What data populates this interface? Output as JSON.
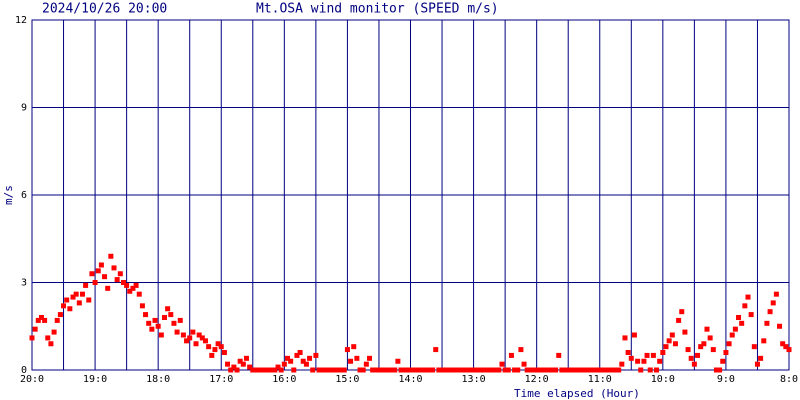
{
  "chart_data": {
    "type": "scatter",
    "title": "Mt.OSA wind monitor (SPEED m/s)",
    "subtitle": "2024/10/26 20:00",
    "x_label": "Time elapsed (Hour)",
    "y_label": "m/s",
    "color": "#ff0000",
    "grid": true,
    "grid_color": "#000080",
    "xlim": [
      0,
      12
    ],
    "ylim": [
      0,
      12
    ],
    "yticks": [
      0,
      3,
      6,
      9,
      12
    ],
    "xticks": [
      {
        "value": 0,
        "label": "20:0"
      },
      {
        "value": 1,
        "label": "19:0"
      },
      {
        "value": 2,
        "label": "18:0"
      },
      {
        "value": 3,
        "label": "17:0"
      },
      {
        "value": 4,
        "label": "16:0"
      },
      {
        "value": 5,
        "label": "15:0"
      },
      {
        "value": 6,
        "label": "14:0"
      },
      {
        "value": 7,
        "label": "13:0"
      },
      {
        "value": 8,
        "label": "12:0"
      },
      {
        "value": 9,
        "label": "11:0"
      },
      {
        "value": 10,
        "label": "10:0"
      },
      {
        "value": 11,
        "label": "9:0"
      },
      {
        "value": 12,
        "label": "8:0"
      }
    ],
    "x": [
      0,
      0.05,
      0.1,
      0.15,
      0.2,
      0.25,
      0.3,
      0.35,
      0.4,
      0.45,
      0.5,
      0.55,
      0.6,
      0.65,
      0.7,
      0.75,
      0.8,
      0.85,
      0.9,
      0.95,
      1,
      1.05,
      1.1,
      1.15,
      1.2,
      1.25,
      1.3,
      1.35,
      1.4,
      1.45,
      1.5,
      1.55,
      1.6,
      1.65,
      1.7,
      1.75,
      1.8,
      1.85,
      1.9,
      1.95,
      2,
      2.05,
      2.1,
      2.15,
      2.2,
      2.25,
      2.3,
      2.35,
      2.4,
      2.45,
      2.5,
      2.55,
      2.6,
      2.65,
      2.7,
      2.75,
      2.8,
      2.85,
      2.9,
      2.95,
      3,
      3.05,
      3.1,
      3.15,
      3.2,
      3.25,
      3.3,
      3.35,
      3.4,
      3.45,
      3.5,
      3.55,
      3.6,
      3.65,
      3.7,
      3.75,
      3.8,
      3.85,
      3.9,
      3.95,
      4,
      4.05,
      4.1,
      4.15,
      4.2,
      4.25,
      4.3,
      4.35,
      4.4,
      4.45,
      4.5,
      4.55,
      4.6,
      4.65,
      4.7,
      4.75,
      4.8,
      4.85,
      4.9,
      4.95,
      5,
      5.05,
      5.1,
      5.15,
      5.2,
      5.25,
      5.3,
      5.35,
      5.4,
      5.45,
      5.5,
      5.55,
      5.6,
      5.65,
      5.7,
      5.75,
      5.8,
      5.85,
      5.9,
      5.95,
      6,
      6.05,
      6.1,
      6.15,
      6.2,
      6.25,
      6.3,
      6.35,
      6.4,
      6.45,
      6.5,
      6.55,
      6.6,
      6.65,
      6.7,
      6.75,
      6.8,
      6.85,
      6.9,
      6.95,
      7,
      7.05,
      7.1,
      7.15,
      7.2,
      7.25,
      7.3,
      7.35,
      7.4,
      7.45,
      7.5,
      7.55,
      7.6,
      7.65,
      7.7,
      7.75,
      7.8,
      7.85,
      7.9,
      7.95,
      8,
      8.05,
      8.1,
      8.15,
      8.2,
      8.25,
      8.3,
      8.35,
      8.4,
      8.45,
      8.5,
      8.55,
      8.6,
      8.65,
      8.7,
      8.75,
      8.8,
      8.85,
      8.9,
      8.95,
      9,
      9.05,
      9.1,
      9.15,
      9.2,
      9.25,
      9.3,
      9.35,
      9.4,
      9.45,
      9.5,
      9.55,
      9.6,
      9.65,
      9.7,
      9.75,
      9.8,
      9.85,
      9.9,
      9.95,
      10,
      10.05,
      10.1,
      10.15,
      10.2,
      10.25,
      10.3,
      10.35,
      10.4,
      10.45,
      10.5,
      10.55,
      10.6,
      10.65,
      10.7,
      10.75,
      10.8,
      10.85,
      10.9,
      10.95,
      11,
      11.05,
      11.1,
      11.15,
      11.2,
      11.25,
      11.3,
      11.35,
      11.4,
      11.45,
      11.5,
      11.55,
      11.6,
      11.65,
      11.7,
      11.75,
      11.8,
      11.85,
      11.9,
      11.95,
      12
    ],
    "values": [
      1.1,
      1.4,
      1.7,
      1.8,
      1.7,
      1.1,
      0.9,
      1.3,
      1.7,
      1.9,
      2.2,
      2.4,
      2.1,
      2.5,
      2.6,
      2.3,
      2.6,
      2.9,
      2.4,
      3.3,
      3.0,
      3.4,
      3.6,
      3.2,
      2.8,
      3.9,
      3.5,
      3.1,
      3.3,
      3.0,
      2.9,
      2.7,
      2.8,
      2.9,
      2.6,
      2.2,
      1.9,
      1.6,
      1.4,
      1.7,
      1.5,
      1.2,
      1.8,
      2.1,
      1.9,
      1.6,
      1.3,
      1.7,
      1.2,
      1.0,
      1.1,
      1.3,
      0.9,
      1.2,
      1.1,
      1.0,
      0.8,
      0.5,
      0.7,
      0.9,
      0.8,
      0.6,
      0.2,
      0,
      0.1,
      0,
      0.3,
      0.2,
      0.4,
      0.1,
      0,
      0,
      0,
      0,
      0,
      0,
      0,
      0,
      0.1,
      0,
      0.2,
      0.4,
      0.3,
      0,
      0.5,
      0.6,
      0.3,
      0.2,
      0.4,
      0,
      0.5,
      0,
      0,
      0,
      0,
      0,
      0,
      0,
      0,
      0,
      0.7,
      0.3,
      0.8,
      0.4,
      0,
      0,
      0.2,
      0.4,
      0,
      0,
      0,
      0,
      0,
      0,
      0,
      0,
      0.3,
      0,
      0,
      0,
      0,
      0,
      0,
      0,
      0,
      0,
      0,
      0,
      0.7,
      0,
      0,
      0,
      0,
      0,
      0,
      0,
      0,
      0,
      0,
      0,
      0,
      0,
      0,
      0,
      0,
      0,
      0,
      0,
      0,
      0.2,
      0,
      0,
      0.5,
      0,
      0,
      0.7,
      0.2,
      0,
      0,
      0,
      0,
      0,
      0,
      0,
      0,
      0,
      0,
      0.5,
      0,
      0,
      0,
      0,
      0,
      0,
      0,
      0,
      0,
      0,
      0,
      0,
      0,
      0,
      0,
      0,
      0,
      0,
      0,
      0.2,
      1.1,
      0.6,
      0.4,
      1.2,
      0.3,
      0,
      0.3,
      0.5,
      0,
      0.5,
      0,
      0.3,
      0.6,
      0.8,
      1.0,
      1.2,
      0.9,
      1.7,
      2.0,
      1.3,
      0.7,
      0.4,
      0.2,
      0.5,
      0.8,
      0.9,
      1.4,
      1.1,
      0.7,
      0,
      0,
      0.3,
      0.6,
      0.9,
      1.2,
      1.4,
      1.8,
      1.6,
      2.2,
      2.5,
      1.9,
      0.8,
      0.2,
      0.4,
      1.0,
      1.6,
      2.0,
      2.3,
      2.6,
      1.5,
      0.9,
      0.8,
      0.7
    ]
  }
}
